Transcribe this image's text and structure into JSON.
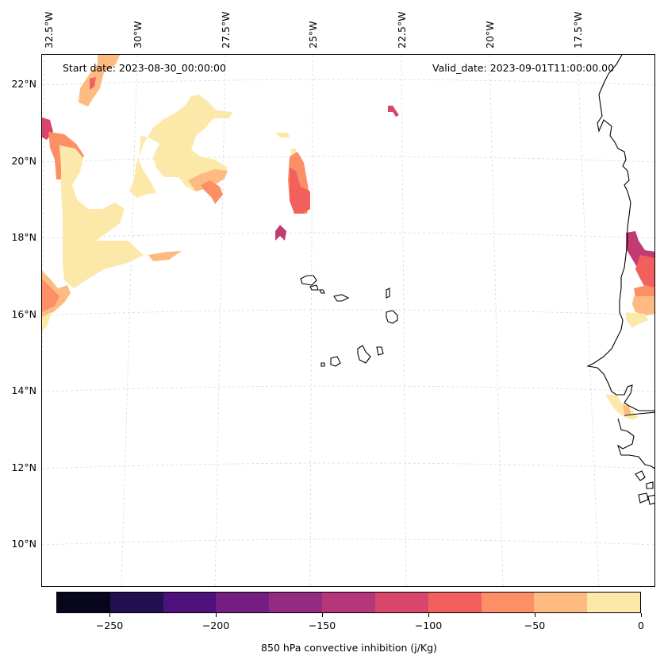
{
  "map": {
    "start_date_text": "Start date: 2023-08-30_00:00:00",
    "valid_date_text": "Valid_date: 2023-09-01T11:00:00.00",
    "lon_labels": [
      "32.5°W",
      "30°W",
      "27.5°W",
      "25°W",
      "22.5°W",
      "20°W",
      "17.5°W"
    ],
    "lat_labels": [
      "22°N",
      "20°N",
      "18°N",
      "16°N",
      "14°N",
      "12°N",
      "10°N"
    ],
    "extent": {
      "lon_min": -32.7,
      "lon_max": -16.0,
      "lat_min": 8.9,
      "lat_max": 22.8
    }
  },
  "colorbar": {
    "title": "850 hPa convective inhibition (j/Kg)",
    "min": -275,
    "max": 0,
    "tick_labels": [
      "−250",
      "−200",
      "−150",
      "−100",
      "−50",
      "0"
    ],
    "tick_values": [
      -250,
      -200,
      -150,
      -100,
      -50,
      0
    ],
    "colors": [
      "#07061c",
      "#221150",
      "#4e117b",
      "#721f81",
      "#932b80",
      "#b5367a",
      "#d9466b",
      "#f1605d",
      "#fc8f65",
      "#febb81",
      "#fce8a8"
    ]
  },
  "colors": {
    "very_light": "#fce8a8",
    "light": "#febb81",
    "orange": "#fc8f65",
    "coral": "#f1605d",
    "red": "#d9466b",
    "magenta": "#c13c73",
    "coast": "#000000",
    "grid": "#d8d8d8"
  }
}
